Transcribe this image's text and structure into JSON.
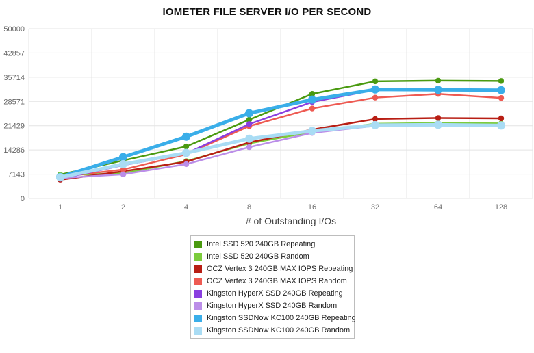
{
  "chart_data": {
    "type": "line",
    "title": "IOMETER FILE SERVER I/O PER SECOND",
    "xlabel": "# of Outstanding I/Os",
    "ylabel": "",
    "categories": [
      "1",
      "2",
      "4",
      "8",
      "16",
      "32",
      "64",
      "128"
    ],
    "yticks": [
      "0",
      "7143",
      "14286",
      "21429",
      "28571",
      "35714",
      "42857",
      "50000"
    ],
    "ylim": [
      0,
      50000
    ],
    "grid": true,
    "legend_position": "bottom",
    "series": [
      {
        "name": "Intel SSD 520 240GB Repeating",
        "color": "#4a9a10",
        "values": [
          7000,
          11200,
          15300,
          23200,
          30800,
          34500,
          34700,
          34600
        ]
      },
      {
        "name": "Intel SSD 520 240GB Random",
        "color": "#7ccc3c",
        "values": [
          6900,
          7400,
          11000,
          16200,
          19600,
          22000,
          22200,
          22100
        ]
      },
      {
        "name": "OCZ Vertex 3 240GB MAX IOPS Repeating",
        "color": "#b81e14",
        "values": [
          5500,
          8000,
          10800,
          16500,
          20300,
          23400,
          23700,
          23600
        ]
      },
      {
        "name": "OCZ Vertex 3 240GB MAX IOPS Random",
        "color": "#ee5a52",
        "values": [
          6400,
          8500,
          13000,
          21300,
          26500,
          29700,
          30800,
          29600
        ]
      },
      {
        "name": "Kingston HyperX SSD 240GB Repeating",
        "color": "#8a3fe0",
        "values": [
          5800,
          9800,
          13200,
          21900,
          28400,
          32000,
          32000,
          32000
        ]
      },
      {
        "name": "Kingston HyperX SSD 240GB Random",
        "color": "#bb8ee8",
        "values": [
          6000,
          7100,
          10100,
          15100,
          19300,
          21400,
          21500,
          21400
        ]
      },
      {
        "name": "Kingston SSDNow KC100 240GB Repeating",
        "color": "#3aaee9",
        "values": [
          6300,
          12200,
          18200,
          25100,
          29100,
          32100,
          32000,
          31900
        ]
      },
      {
        "name": "Kingston SSDNow KC100 240GB Random",
        "color": "#a9dcf4",
        "values": [
          6200,
          10100,
          13400,
          17600,
          19900,
          21600,
          21700,
          21500
        ]
      }
    ]
  }
}
